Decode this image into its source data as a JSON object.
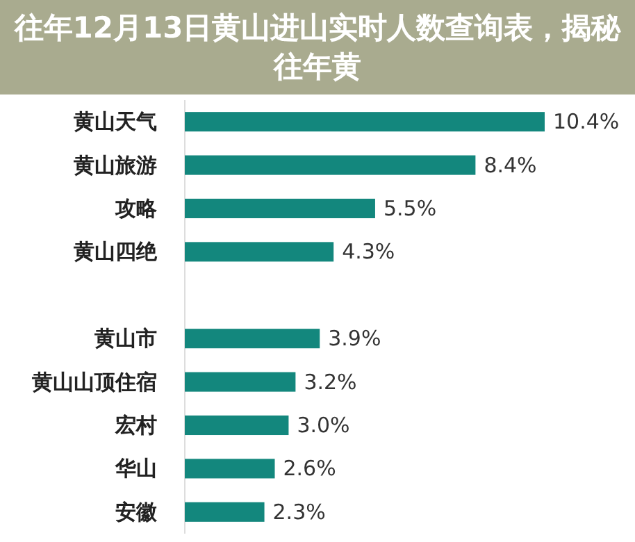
{
  "chart_data": {
    "type": "bar",
    "orientation": "horizontal",
    "title": "往年12月13日黄山进山实时人数查询表，揭秘往年黄",
    "categories": [
      "黄山天气",
      "黄山旅游",
      "攻略",
      "黄山四绝",
      null,
      "黄山市",
      "黄山山顶住宿",
      "宏村",
      "华山",
      "安徽"
    ],
    "values": [
      10.4,
      8.4,
      5.5,
      4.3,
      null,
      3.9,
      3.2,
      3.0,
      2.6,
      2.3
    ],
    "value_labels": [
      "10.4%",
      "8.4%",
      "5.5%",
      "4.3%",
      null,
      "3.9%",
      "3.2%",
      "3.0%",
      "2.6%",
      "2.3%"
    ],
    "color": "#13877d"
  }
}
